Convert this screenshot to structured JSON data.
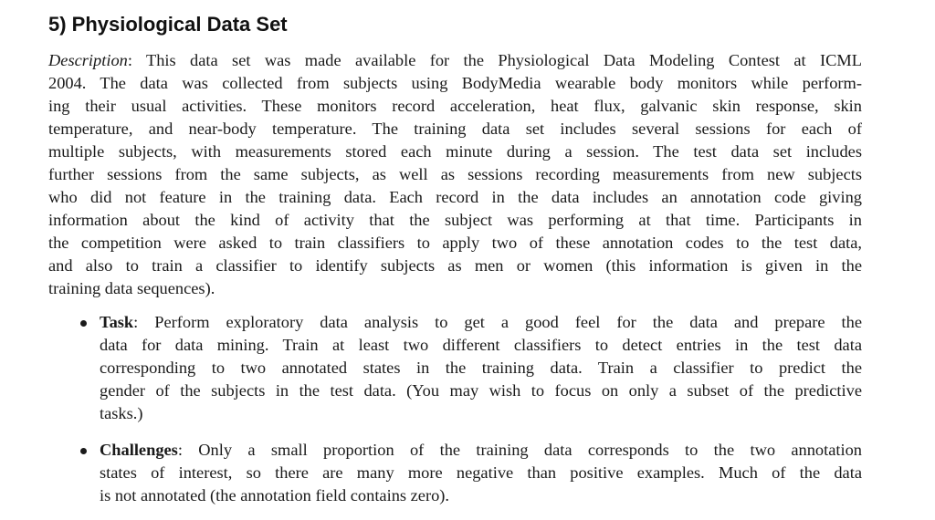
{
  "title": "5) Physiological Data Set",
  "description": {
    "label": "Description",
    "lines": [
      ": This data set was made available for the Physiological Data Modeling Contest at ICML",
      "2004. The data was collected from subjects using BodyMedia wearable body monitors while perform-",
      "ing their usual activities. These monitors record acceleration, heat flux, galvanic skin response, skin",
      "temperature, and near-body temperature. The training data set includes several sessions for each of",
      "multiple subjects, with measurements stored each minute during a session. The test data set includes",
      "further sessions from the same subjects, as well as sessions recording measurements from new subjects",
      "who did not feature in the training data. Each record in the data includes an annotation code giving",
      "information about the kind of activity that the subject was performing at that time. Participants in",
      "the competition were asked to train classifiers to apply two of these annotation codes to the test data,",
      "and also to train a classifier to identify subjects as men or women (this information is given in the",
      "training data sequences)."
    ]
  },
  "bullets": [
    {
      "label": "Task",
      "lines": [
        ": Perform exploratory data analysis to get a good feel for the data and prepare the",
        "data for data mining. Train at least two different classifiers to detect entries in the test data",
        "corresponding to two annotated states in the training data. Train a classifier to predict the",
        "gender of the subjects in the test data. (You may wish to focus on only a subset of the predictive",
        "tasks.)"
      ]
    },
    {
      "label": "Challenges",
      "lines": [
        ": Only a small proportion of the training data corresponds to the two annotation",
        "states of interest, so there are many more negative than positive examples. Much of the data",
        "is not annotated (the annotation field contains zero)."
      ]
    }
  ]
}
